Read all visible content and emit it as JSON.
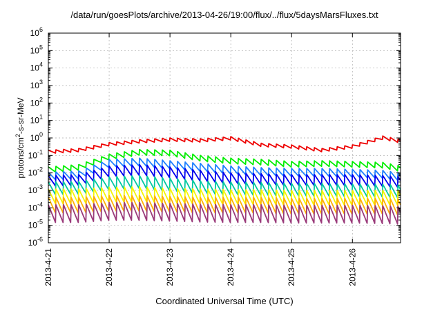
{
  "chart_data": {
    "type": "line",
    "title": "/data/run/goesPlots/archive/2013-04-26/19:00/flux/../flux/5daysMarsFluxes.txt",
    "xlabel": "Coordinated Universal Time (UTC)",
    "ylabel": {
      "base": "protons/cm",
      "sup": "2",
      "rest": "-s-sr-MeV"
    },
    "y_scale": "log",
    "ylim": [
      1e-06,
      1000000.0
    ],
    "xlim": [
      "2013-04-21T00:00",
      "2013-04-26T19:00"
    ],
    "grid": true,
    "legend": "none",
    "x_ticks": [
      "2013-4-21",
      "2013-4-22",
      "2013-4-23",
      "2013-4-24",
      "2013-4-25",
      "2013-4-26"
    ],
    "y_ticks": [
      {
        "base": "10",
        "exp": "-6"
      },
      {
        "base": "10",
        "exp": "-5"
      },
      {
        "base": "10",
        "exp": "-4"
      },
      {
        "base": "10",
        "exp": "-3"
      },
      {
        "base": "10",
        "exp": "-2"
      },
      {
        "base": "10",
        "exp": "-1"
      },
      {
        "base": "10",
        "exp": "0"
      },
      {
        "base": "10",
        "exp": "1"
      },
      {
        "base": "10",
        "exp": "2"
      },
      {
        "base": "10",
        "exp": "3"
      },
      {
        "base": "10",
        "exp": "4"
      },
      {
        "base": "10",
        "exp": "5"
      },
      {
        "base": "10",
        "exp": "6"
      }
    ],
    "x_time_points": [
      "2013-04-21",
      "2013-04-21T12:00",
      "2013-04-22",
      "2013-04-22T12:00",
      "2013-04-23",
      "2013-04-23T12:00",
      "2013-04-24",
      "2013-04-24T12:00",
      "2013-04-25",
      "2013-04-25T12:00",
      "2013-04-26",
      "2013-04-26T12:00",
      "2013-04-26T19:00"
    ],
    "sawtooth_cycles_per_day": 8,
    "series": [
      {
        "color": "#ee0000",
        "sawtooth_drop": 1.6,
        "upper_envelope": [
          0.2,
          0.25,
          0.55,
          0.8,
          1.0,
          0.9,
          1.2,
          0.5,
          0.4,
          0.25,
          0.4,
          1.3,
          0.8
        ]
      },
      {
        "color": "#00ee00",
        "sawtooth_drop": 2.2,
        "upper_envelope": [
          0.022,
          0.03,
          0.12,
          0.22,
          0.2,
          0.1,
          0.07,
          0.06,
          0.045,
          0.05,
          0.045,
          0.04,
          0.025
        ]
      },
      {
        "color": "#1e80ff",
        "sawtooth_drop": 3.0,
        "upper_envelope": [
          0.011,
          0.013,
          0.06,
          0.07,
          0.05,
          0.035,
          0.025,
          0.02,
          0.018,
          0.018,
          0.016,
          0.014,
          0.01
        ]
      },
      {
        "color": "#0000ee",
        "sawtooth_drop": 4.5,
        "upper_envelope": [
          0.007,
          0.008,
          0.025,
          0.03,
          0.022,
          0.014,
          0.01,
          0.009,
          0.008,
          0.008,
          0.008,
          0.007,
          0.006
        ]
      },
      {
        "color": "#00c8a0",
        "sawtooth_drop": 6.0,
        "upper_envelope": [
          0.003,
          0.0032,
          0.006,
          0.007,
          0.005,
          0.0035,
          0.003,
          0.0028,
          0.0025,
          0.0025,
          0.0023,
          0.0022,
          0.002
        ]
      },
      {
        "color": "#f5f500",
        "sawtooth_drop": 8.0,
        "upper_envelope": [
          0.0012,
          0.0012,
          0.0015,
          0.0016,
          0.0013,
          0.0012,
          0.0011,
          0.0011,
          0.001,
          0.001,
          0.001,
          0.001,
          0.001
        ]
      },
      {
        "color": "#ffb000",
        "sawtooth_drop": 9.0,
        "upper_envelope": [
          0.0004,
          0.0004,
          0.0005,
          0.0005,
          0.00045,
          0.0004,
          0.0004,
          0.0004,
          0.00035,
          0.00035,
          0.00035,
          0.00035,
          0.0003
        ]
      },
      {
        "color": "#9a3a7a",
        "sawtooth_drop": 12.0,
        "upper_envelope": [
          0.00015,
          0.00015,
          0.0002,
          0.0002,
          0.00018,
          0.00016,
          0.00015,
          0.00015,
          0.00014,
          0.00014,
          0.00014,
          0.00013,
          0.00012
        ]
      }
    ]
  }
}
